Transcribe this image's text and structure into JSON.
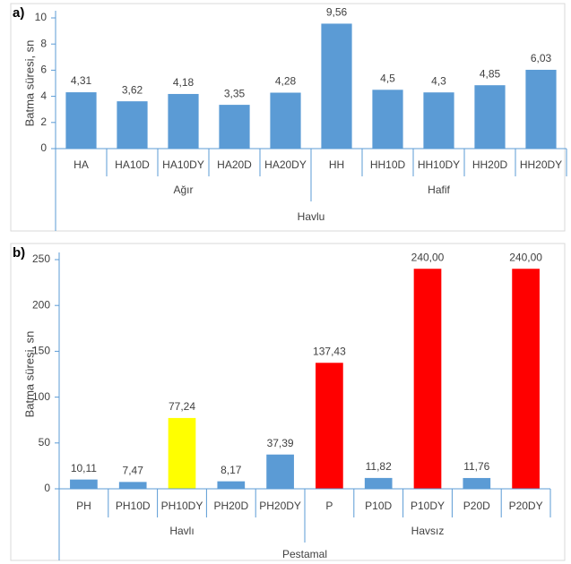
{
  "chart_data": [
    {
      "type": "bar",
      "title": "a)",
      "y_label": "Batma süresi, sn",
      "categories": [
        "HA",
        "HA10D",
        "HA10DY",
        "HA20D",
        "HA20DY",
        "HH",
        "HH10D",
        "HH10DY",
        "HH20D",
        "HH20DY"
      ],
      "values": [
        4.31,
        3.62,
        4.18,
        3.35,
        4.28,
        9.56,
        4.5,
        4.3,
        4.85,
        6.03
      ],
      "value_labels": [
        "4,31",
        "3,62",
        "4,18",
        "3,35",
        "4,28",
        "9,56",
        "4,5",
        "4,3",
        "4,85",
        "6,03"
      ],
      "colors": [
        "#5b9bd5",
        "#5b9bd5",
        "#5b9bd5",
        "#5b9bd5",
        "#5b9bd5",
        "#5b9bd5",
        "#5b9bd5",
        "#5b9bd5",
        "#5b9bd5",
        "#5b9bd5"
      ],
      "groups": [
        {
          "label": "Ağır",
          "size": 5
        },
        {
          "label": "Hafif",
          "size": 5
        }
      ],
      "outer_group": "Havlu",
      "ylim": [
        0,
        10
      ],
      "yticks": [
        0,
        2,
        4,
        6,
        8,
        10
      ]
    },
    {
      "type": "bar",
      "title": "b)",
      "y_label": "Batma süresi, sn",
      "categories": [
        "PH",
        "PH10D",
        "PH10DY",
        "PH20D",
        "PH20DY",
        "P",
        "P10D",
        "P10DY",
        "P20D",
        "P20DY"
      ],
      "values": [
        10.11,
        7.47,
        77.24,
        8.17,
        37.39,
        137.43,
        11.82,
        240,
        11.76,
        240
      ],
      "value_labels": [
        "10,11",
        "7,47",
        "77,24",
        "8,17",
        "37,39",
        "137,43",
        "11,82",
        "240,00",
        "11,76",
        "240,00"
      ],
      "colors": [
        "#5b9bd5",
        "#5b9bd5",
        "#ffff00",
        "#5b9bd5",
        "#5b9bd5",
        "#ff0000",
        "#5b9bd5",
        "#ff0000",
        "#5b9bd5",
        "#ff0000"
      ],
      "groups": [
        {
          "label": "Havlı",
          "size": 5
        },
        {
          "label": "Havsız",
          "size": 5
        }
      ],
      "outer_group": "Pestamal",
      "ylim": [
        0,
        250
      ],
      "yticks": [
        0,
        50,
        100,
        150,
        200,
        250
      ]
    }
  ]
}
